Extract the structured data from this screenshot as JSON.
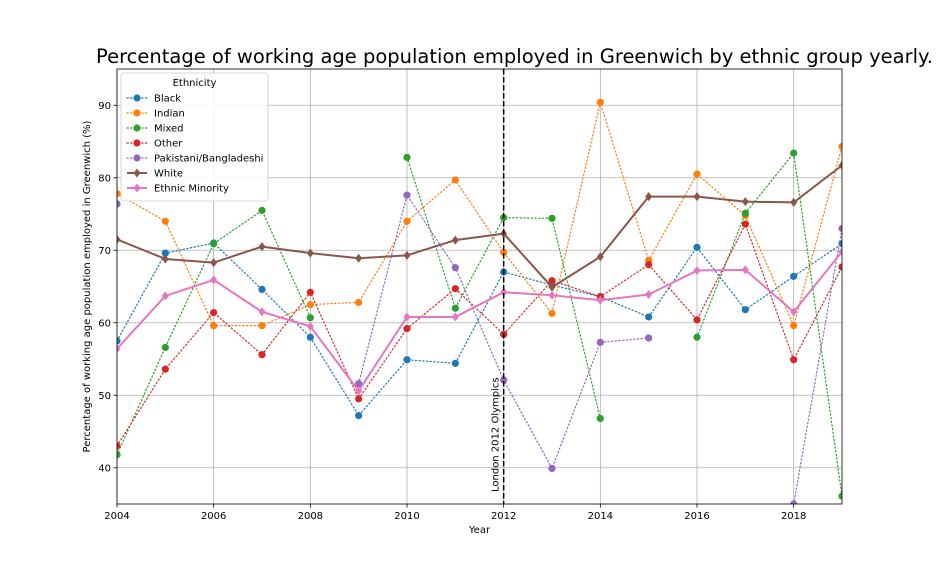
{
  "chart_data": {
    "type": "line",
    "title": "Percentage of working age population employed in Greenwich by ethnic group yearly.",
    "xlabel": "Year",
    "ylabel": "Percentage of working age population employed in Greenwich (%)",
    "xlim": [
      2004,
      2019
    ],
    "ylim": [
      35,
      95
    ],
    "xticks": [
      2004,
      2006,
      2008,
      2010,
      2012,
      2014,
      2016,
      2018
    ],
    "yticks": [
      40,
      50,
      60,
      70,
      80,
      90
    ],
    "grid": true,
    "legend": {
      "title": "Ethnicity",
      "placement": "top-left"
    },
    "x": [
      2004,
      2005,
      2006,
      2007,
      2008,
      2009,
      2010,
      2011,
      2012,
      2013,
      2014,
      2015,
      2016,
      2017,
      2018,
      2019
    ],
    "series": [
      {
        "name": "Black",
        "color": "#1f77b4",
        "style": "dotted",
        "marker": "circle",
        "values": [
          57.5,
          69.6,
          71.0,
          64.6,
          58.0,
          47.2,
          54.9,
          54.4,
          67.0,
          65.2,
          63.6,
          60.8,
          70.4,
          61.8,
          66.4,
          70.9
        ]
      },
      {
        "name": "Indian",
        "color": "#ff7f0e",
        "style": "dotted",
        "marker": "circle",
        "values": [
          77.8,
          74.0,
          59.6,
          59.6,
          62.5,
          62.8,
          74.0,
          79.7,
          69.7,
          61.3,
          90.4,
          68.6,
          80.5,
          74.8,
          59.6,
          84.3
        ]
      },
      {
        "name": "Mixed",
        "color": "#2ca02c",
        "style": "dotted",
        "marker": "circle",
        "values": [
          41.8,
          56.6,
          70.9,
          75.5,
          60.7,
          null,
          82.8,
          62.0,
          74.5,
          74.4,
          46.8,
          null,
          58.0,
          75.1,
          83.4,
          36.1
        ]
      },
      {
        "name": "Other",
        "color": "#d62728",
        "style": "dotted",
        "marker": "circle",
        "values": [
          43.0,
          53.6,
          61.4,
          55.6,
          64.2,
          49.5,
          59.2,
          64.7,
          58.4,
          65.8,
          63.6,
          68.0,
          60.4,
          73.6,
          54.9,
          67.7
        ]
      },
      {
        "name": "Pakistani/Bangladeshi",
        "color": "#9467bd",
        "style": "dotted",
        "marker": "circle",
        "values": [
          76.4,
          null,
          null,
          null,
          null,
          51.6,
          77.6,
          67.6,
          52.1,
          39.9,
          57.3,
          57.9,
          null,
          null,
          35.0,
          73.0
        ]
      },
      {
        "name": "White",
        "color": "#8c564b",
        "style": "solid",
        "marker": "diamond",
        "values": [
          71.5,
          68.8,
          68.3,
          70.5,
          69.6,
          68.9,
          69.3,
          71.4,
          72.3,
          64.9,
          69.1,
          77.4,
          77.4,
          76.7,
          76.6,
          81.7
        ]
      },
      {
        "name": "Ethnic Minority",
        "color": "#e377c2",
        "style": "solid",
        "marker": "diamond",
        "values": [
          56.4,
          63.7,
          65.9,
          61.5,
          59.5,
          50.6,
          60.8,
          60.8,
          64.2,
          63.8,
          63.1,
          63.9,
          67.2,
          67.3,
          61.5,
          69.8
        ]
      }
    ],
    "annotations": [
      {
        "type": "vline",
        "x": 2012,
        "style": "dashed",
        "label": "London 2012 Olympics"
      }
    ]
  }
}
